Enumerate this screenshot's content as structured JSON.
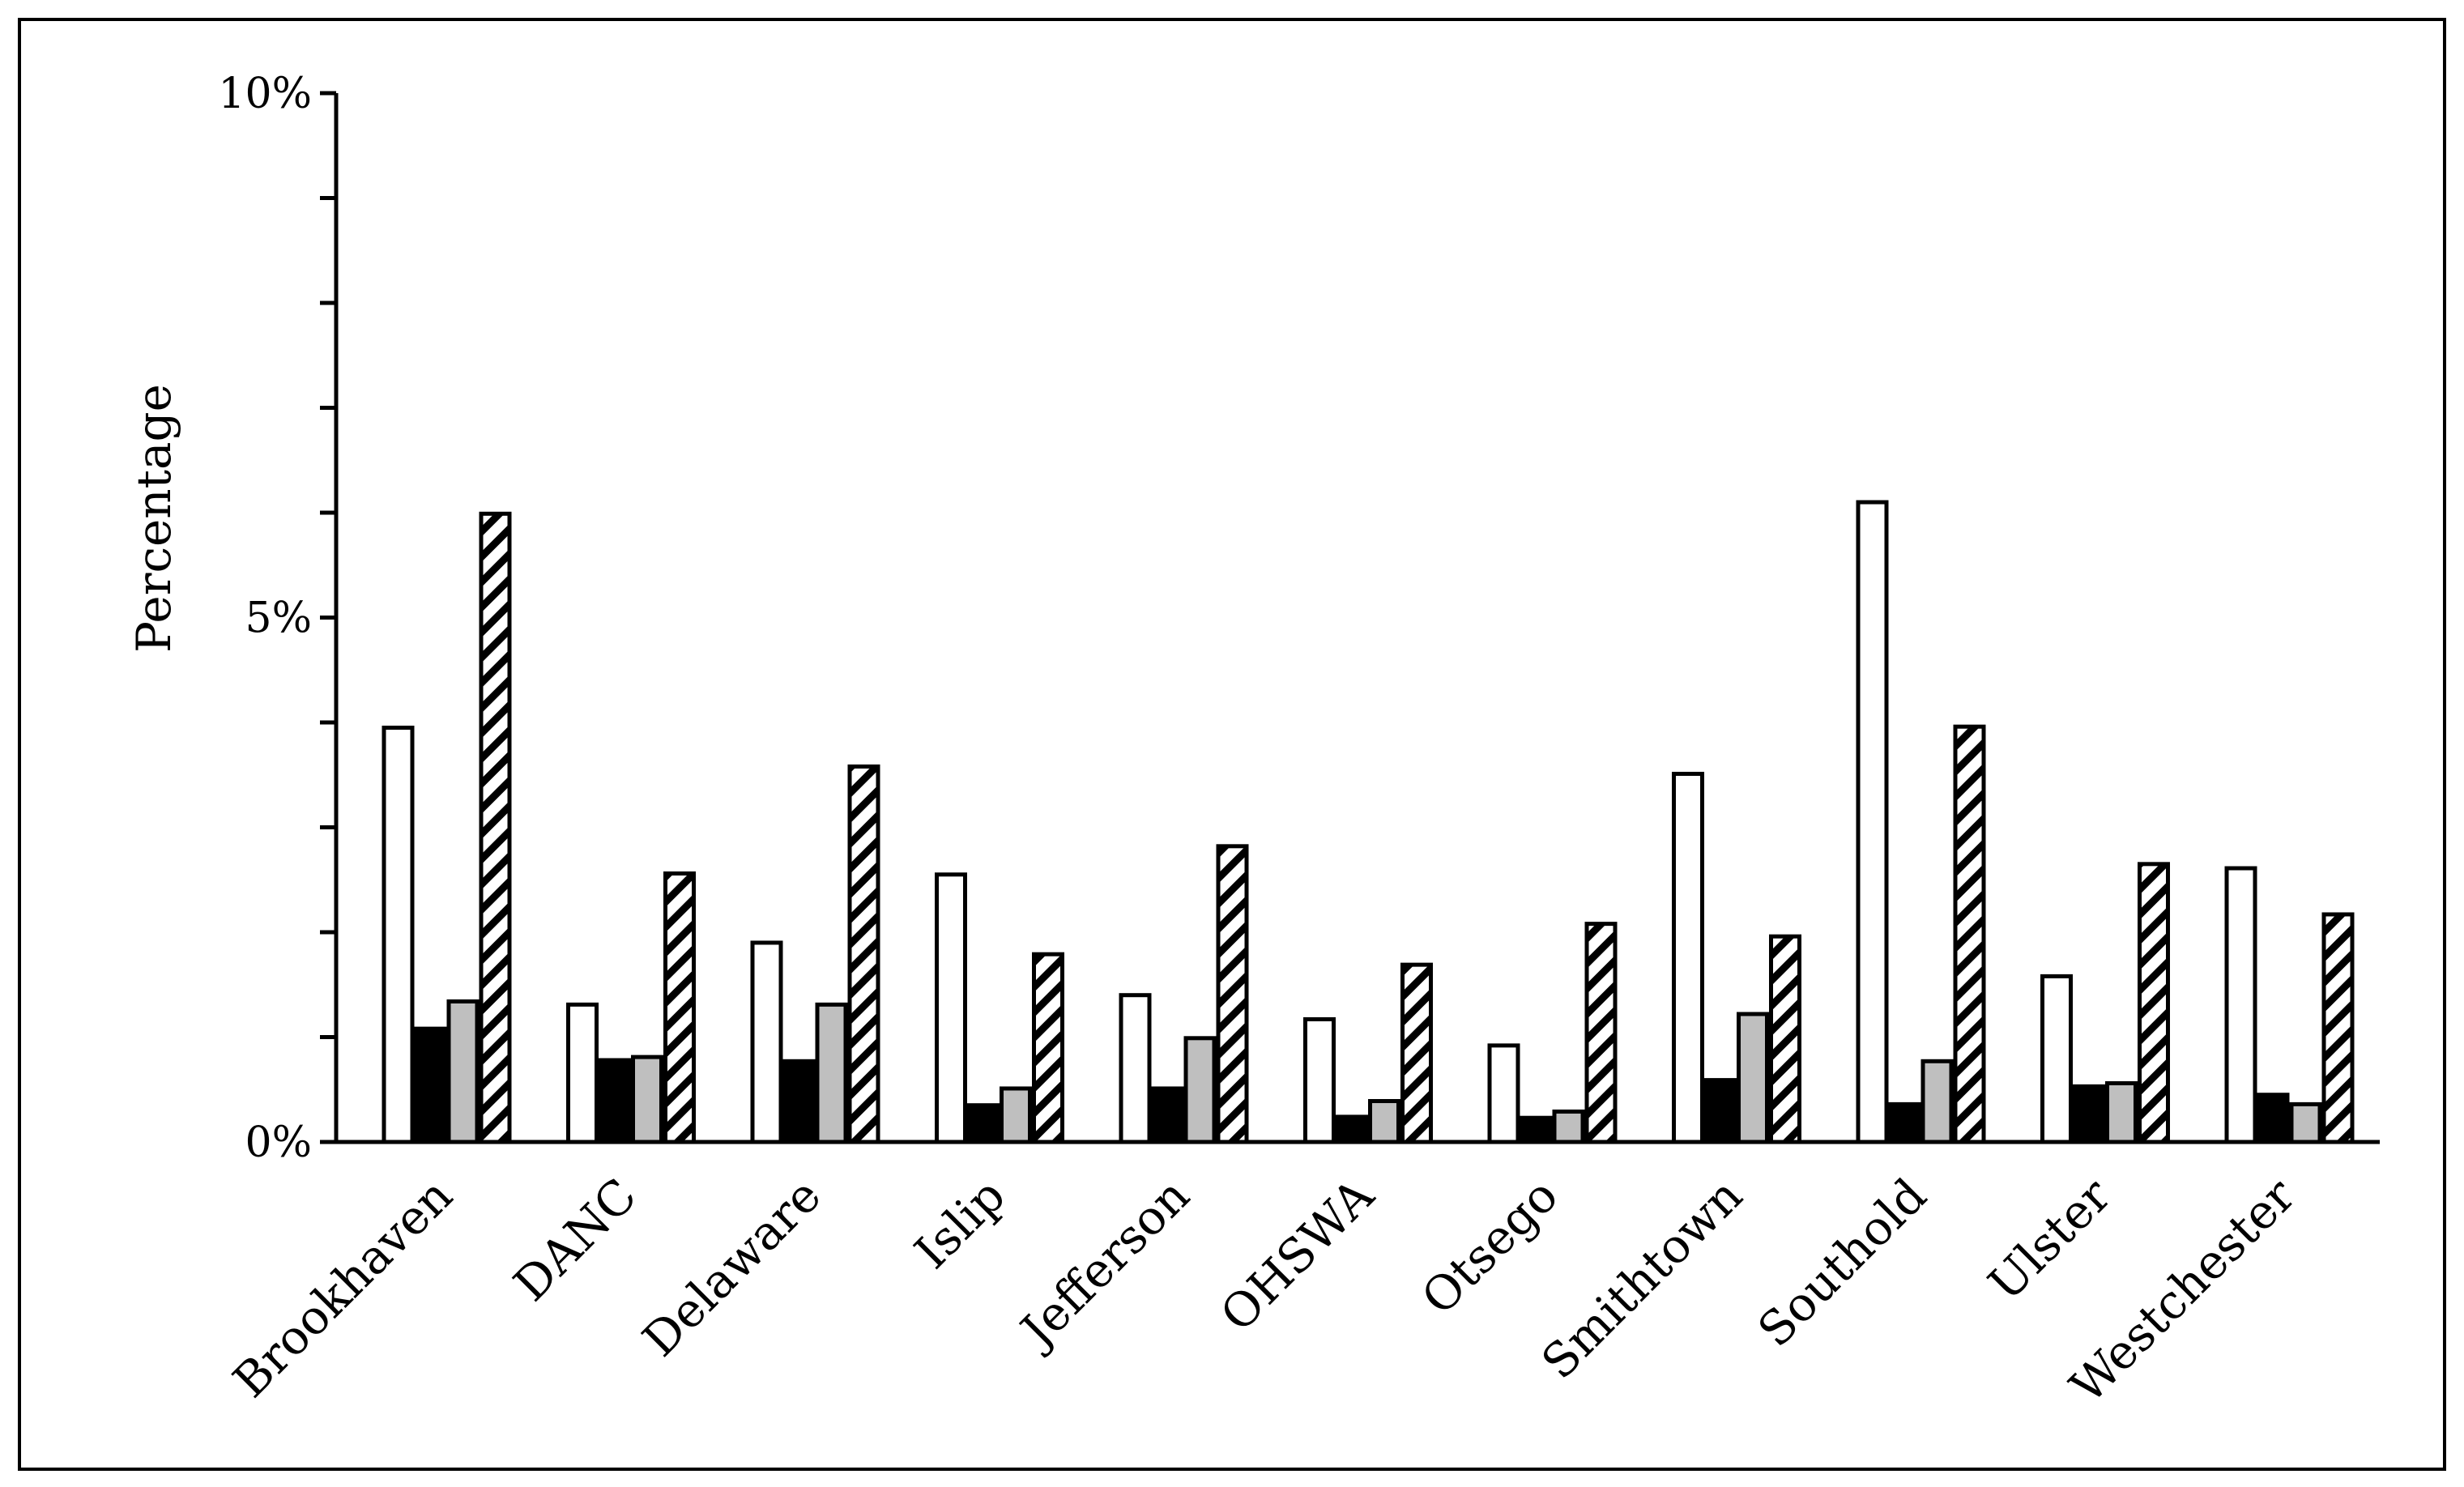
{
  "chart_data": {
    "type": "bar",
    "title": "",
    "xlabel": "",
    "ylabel": "Percentage",
    "ylim": [
      0,
      10
    ],
    "y_unit": "%",
    "y_tick_labels": [
      "0%",
      "5%",
      "10%"
    ],
    "y_tick_label_values": [
      0,
      5,
      10
    ],
    "y_minor_tick_step": 1,
    "grid": false,
    "legend": "none",
    "categories": [
      "Brookhaven",
      "DANC",
      "Delaware",
      "Islip",
      "Jefferson",
      "OHSWA",
      "Otsego",
      "Smithtown",
      "Southold",
      "Ulster",
      "Westchester"
    ],
    "series": [
      {
        "style": "white",
        "color": "#ffffff",
        "values": [
          3.95,
          1.31,
          1.9,
          2.55,
          1.4,
          1.17,
          0.92,
          3.51,
          6.1,
          1.58,
          2.61
        ]
      },
      {
        "style": "black",
        "color": "#000000",
        "values": [
          1.08,
          0.78,
          0.77,
          0.35,
          0.51,
          0.24,
          0.23,
          0.59,
          0.36,
          0.53,
          0.45
        ]
      },
      {
        "style": "gray",
        "color": "#bfbfbf",
        "values": [
          1.34,
          0.81,
          1.31,
          0.51,
          0.99,
          0.39,
          0.29,
          1.22,
          0.77,
          0.56,
          0.36
        ]
      },
      {
        "style": "hatched",
        "color": "#000000",
        "values": [
          5.99,
          2.56,
          3.58,
          1.79,
          2.82,
          1.69,
          2.08,
          1.96,
          3.96,
          2.65,
          2.17
        ]
      }
    ]
  }
}
